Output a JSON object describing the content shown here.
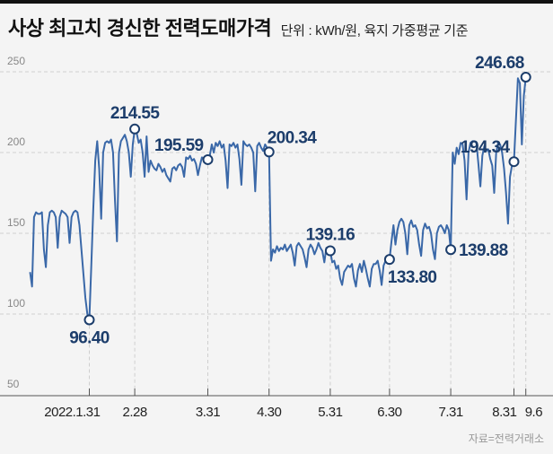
{
  "header": {
    "title": "사상 최고치 경신한 전력도매가격",
    "unit": "단위 : kWh/원, 육지 가중평균 기준"
  },
  "footer": {
    "source": "자료=전력거래소"
  },
  "colors": {
    "line": "#3a68a8",
    "label": "#1c3d6b",
    "grid": "#cfcfcf"
  },
  "chart_data": {
    "type": "line",
    "title": "사상 최고치 경신한 전력도매가격",
    "ylabel": "kWh/원",
    "ylim": [
      50,
      250
    ],
    "yticks": [
      "250",
      "200",
      "150",
      "100",
      "50"
    ],
    "ytick_values": [
      250,
      200,
      150,
      100,
      50
    ],
    "grid": true,
    "xticks": [
      {
        "label": "2022.1.31",
        "index": 30
      },
      {
        "label": "2.28",
        "index": 53
      },
      {
        "label": "3.31",
        "index": 90
      },
      {
        "label": "4.30",
        "index": 121
      },
      {
        "label": "5.31",
        "index": 152
      },
      {
        "label": "6.30",
        "index": 182
      },
      {
        "label": "7.31",
        "index": 213
      },
      {
        "label": "8.31",
        "index": 245
      },
      {
        "label": "9.6",
        "index": 251
      }
    ],
    "annotations": [
      {
        "index": 30,
        "text": "96.40",
        "placement": "below"
      },
      {
        "index": 53,
        "text": "214.55",
        "placement": "above"
      },
      {
        "index": 90,
        "text": "195.59",
        "placement": "above-left"
      },
      {
        "index": 121,
        "text": "200.34",
        "placement": "above-right"
      },
      {
        "index": 152,
        "text": "139.16",
        "placement": "above"
      },
      {
        "index": 182,
        "text": "133.80",
        "placement": "below-right"
      },
      {
        "index": 213,
        "text": "139.88",
        "placement": "right"
      },
      {
        "index": 245,
        "text": "194.34",
        "placement": "above-left"
      },
      {
        "index": 251,
        "text": "246.68",
        "placement": "above-left"
      }
    ],
    "values": [
      126,
      117,
      160,
      163,
      162,
      162,
      163,
      140,
      129,
      155,
      163,
      164,
      163,
      160,
      141,
      160,
      164,
      163,
      162,
      160,
      144,
      160,
      163,
      164,
      163,
      155,
      140,
      125,
      110,
      100,
      96.4,
      130,
      165,
      195,
      207,
      190,
      159,
      200,
      206,
      207,
      206,
      208,
      200,
      170,
      145,
      200,
      207,
      209,
      211,
      207,
      200,
      185,
      205,
      214.55,
      212,
      206,
      208,
      200,
      185,
      210,
      188,
      195,
      192,
      190,
      189,
      193,
      191,
      188,
      190,
      186,
      184,
      182,
      190,
      191,
      189,
      192,
      193,
      191,
      185,
      197,
      196,
      198,
      195,
      196,
      193,
      186,
      192,
      197,
      196,
      196,
      195.59,
      198,
      205,
      200,
      206,
      204,
      207,
      203,
      205,
      195,
      178,
      205,
      204,
      206,
      203,
      205,
      196,
      180,
      207,
      205,
      204,
      205,
      203,
      200,
      176,
      204,
      206,
      203,
      201,
      205,
      203,
      200.34,
      133,
      140,
      138,
      142,
      139,
      141,
      140,
      143,
      139,
      141,
      143,
      138,
      130,
      142,
      144,
      142,
      140,
      135,
      129,
      140,
      143,
      141,
      137,
      140,
      144,
      141,
      139,
      132,
      141,
      138,
      139.16,
      132,
      133,
      128,
      130,
      122,
      118,
      126,
      128,
      130,
      129,
      131,
      122,
      117,
      127,
      131,
      126,
      133,
      128,
      122,
      117,
      128,
      131,
      131,
      133,
      127,
      118,
      130,
      133,
      135,
      133.8,
      145,
      155,
      143,
      152,
      157,
      159,
      157,
      150,
      137,
      155,
      158,
      154,
      155,
      152,
      143,
      136,
      152,
      156,
      153,
      154,
      150,
      140,
      134,
      150,
      154,
      155,
      153,
      150,
      155,
      152,
      139.88,
      200,
      193,
      203,
      199,
      206,
      205,
      195,
      171,
      200,
      206,
      207,
      207,
      206,
      193,
      179,
      198,
      204,
      201,
      202,
      196,
      192,
      175,
      200,
      206,
      205,
      200,
      190,
      175,
      156,
      185,
      192,
      194.34,
      220,
      246,
      243,
      205,
      235,
      246.68
    ]
  }
}
